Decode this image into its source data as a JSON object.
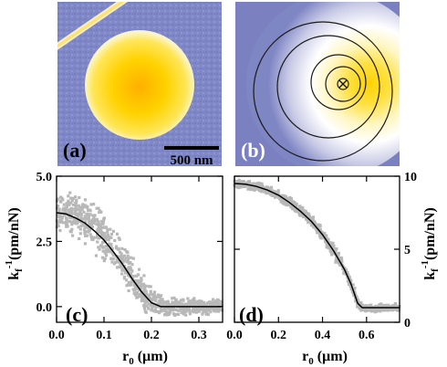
{
  "panel_labels": {
    "a": "(a)",
    "b": "(b)",
    "c": "(c)",
    "d": "(d)"
  },
  "scale_bar": {
    "label": "500 nm"
  },
  "colors": {
    "substrate": "#7f86c4",
    "bright_center": "#ffd400",
    "halo": "#f4f4f6",
    "scatter": "#b8b8b8",
    "fit": "#000000",
    "contour": "#1a1a1a"
  },
  "chart_data": [
    {
      "panel": "(c)",
      "type": "scatter",
      "xlabel": "r",
      "xlabel_sub": "0",
      "xlabel_unit": "(µm)",
      "ylabel": "k",
      "ylabel_sub": "f",
      "ylabel_sup": "-1",
      "ylabel_unit": "(pm/nN)",
      "xlim": [
        0.0,
        0.35
      ],
      "ylim": [
        -0.6,
        5.0
      ],
      "xticks": [
        0.0,
        0.1,
        0.2,
        0.3
      ],
      "xticklabels": [
        "0.0",
        "0.1",
        "0.2",
        "0.3"
      ],
      "yticks": [
        0.0,
        2.5,
        5.0
      ],
      "yticklabels": [
        "0.0",
        "2.5",
        "5.0"
      ],
      "series": [
        {
          "kind": "fit-line",
          "x": [
            0.0,
            0.02,
            0.04,
            0.06,
            0.08,
            0.1,
            0.12,
            0.14,
            0.16,
            0.18,
            0.2,
            0.22,
            0.24,
            0.26,
            0.3,
            0.35
          ],
          "y": [
            3.6,
            3.55,
            3.4,
            3.2,
            2.9,
            2.55,
            2.1,
            1.6,
            1.05,
            0.55,
            0.15,
            0.0,
            0.0,
            0.0,
            0.0,
            0.0
          ]
        },
        {
          "kind": "scatter-cloud",
          "x": [
            0.0,
            0.02,
            0.04,
            0.06,
            0.08,
            0.1,
            0.12,
            0.14,
            0.16,
            0.18,
            0.2,
            0.22,
            0.24,
            0.26,
            0.3,
            0.35
          ],
          "y": [
            3.6,
            3.6,
            3.5,
            3.3,
            3.0,
            2.6,
            2.2,
            1.7,
            1.1,
            0.6,
            0.2,
            0.05,
            0.0,
            0.0,
            0.0,
            0.0
          ],
          "spread": [
            0.7,
            0.8,
            0.8,
            0.9,
            0.9,
            0.9,
            0.8,
            0.8,
            0.7,
            0.6,
            0.5,
            0.4,
            0.35,
            0.3,
            0.3,
            0.3
          ]
        }
      ]
    },
    {
      "panel": "(d)",
      "type": "scatter",
      "xlabel": "r",
      "xlabel_sub": "0",
      "xlabel_unit": "(µm)",
      "ylabel": "k",
      "ylabel_sub": "f",
      "ylabel_sup": "-1",
      "ylabel_unit": "(pm/nN)",
      "xlim": [
        0.0,
        0.75
      ],
      "ylim": [
        0,
        10
      ],
      "xticks": [
        0.0,
        0.2,
        0.4,
        0.6
      ],
      "xticklabels": [
        "0.0",
        "0.2",
        "0.4",
        "0.6"
      ],
      "yticks": [
        0,
        5,
        10
      ],
      "yticklabels": [
        "0",
        "5",
        "10"
      ],
      "series": [
        {
          "kind": "fit-line",
          "x": [
            0.0,
            0.05,
            0.1,
            0.15,
            0.2,
            0.25,
            0.3,
            0.35,
            0.4,
            0.45,
            0.5,
            0.53,
            0.56,
            0.58,
            0.62,
            0.7,
            0.75
          ],
          "y": [
            9.5,
            9.45,
            9.3,
            9.05,
            8.7,
            8.2,
            7.6,
            6.9,
            6.0,
            4.9,
            3.6,
            2.6,
            1.3,
            1.0,
            1.0,
            1.0,
            1.0
          ]
        },
        {
          "kind": "scatter-cloud",
          "x": [
            0.0,
            0.05,
            0.1,
            0.15,
            0.2,
            0.25,
            0.3,
            0.35,
            0.4,
            0.45,
            0.5,
            0.53,
            0.56,
            0.58,
            0.62,
            0.7,
            0.75
          ],
          "y": [
            9.5,
            9.45,
            9.3,
            9.05,
            8.7,
            8.2,
            7.6,
            6.9,
            6.0,
            4.9,
            3.6,
            2.6,
            1.3,
            1.0,
            1.0,
            1.0,
            1.0
          ],
          "spread": [
            0.3,
            0.3,
            0.3,
            0.3,
            0.35,
            0.35,
            0.4,
            0.4,
            0.4,
            0.45,
            0.45,
            0.45,
            0.4,
            0.3,
            0.25,
            0.25,
            0.25
          ]
        }
      ]
    }
  ]
}
